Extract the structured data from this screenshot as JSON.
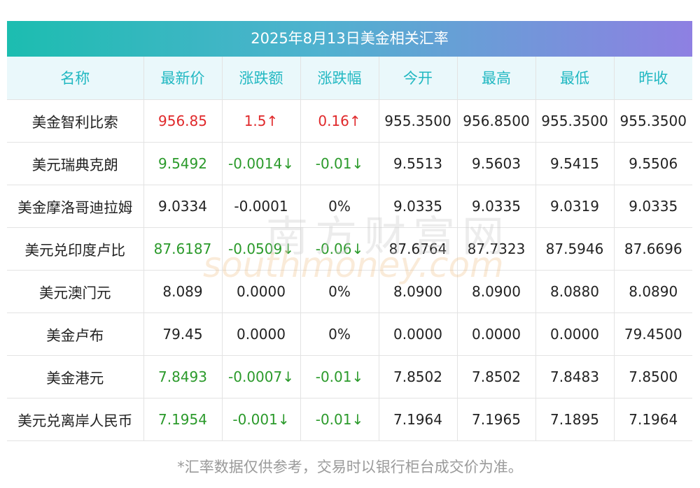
{
  "title": "2025年8月13日美金相关汇率",
  "headers": [
    "名称",
    "最新价",
    "涨跌额",
    "涨跌幅",
    "今开",
    "最高",
    "最低",
    "昨收"
  ],
  "rows": [
    {
      "name": "美金智利比索",
      "latest": "956.85",
      "change": "1.5↑",
      "pct": "0.16↑",
      "open": "955.3500",
      "high": "956.8500",
      "low": "955.3500",
      "prev": "955.3500",
      "dir": "up"
    },
    {
      "name": "美元瑞典克朗",
      "latest": "9.5492",
      "change": "-0.0014↓",
      "pct": "-0.01↓",
      "open": "9.5513",
      "high": "9.5603",
      "low": "9.5415",
      "prev": "9.5506",
      "dir": "down"
    },
    {
      "name": "美金摩洛哥迪拉姆",
      "latest": "9.0334",
      "change": "-0.0001",
      "pct": "0%",
      "open": "9.0335",
      "high": "9.0335",
      "low": "9.0319",
      "prev": "9.0335",
      "dir": "flat"
    },
    {
      "name": "美元兑印度卢比",
      "latest": "87.6187",
      "change": "-0.0509↓",
      "pct": "-0.06↓",
      "open": "87.6764",
      "high": "87.7323",
      "low": "87.5946",
      "prev": "87.6696",
      "dir": "down"
    },
    {
      "name": "美元澳门元",
      "latest": "8.089",
      "change": "0.0000",
      "pct": "0%",
      "open": "8.0900",
      "high": "8.0900",
      "low": "8.0880",
      "prev": "8.0890",
      "dir": "flat"
    },
    {
      "name": "美金卢布",
      "latest": "79.45",
      "change": "0.0000",
      "pct": "0%",
      "open": "0.0000",
      "high": "0.0000",
      "low": "0.0000",
      "prev": "79.4500",
      "dir": "flat"
    },
    {
      "name": "美金港元",
      "latest": "7.8493",
      "change": "-0.0007↓",
      "pct": "-0.01↓",
      "open": "7.8502",
      "high": "7.8502",
      "low": "7.8483",
      "prev": "7.8500",
      "dir": "down"
    },
    {
      "name": "美元兑离岸人民币",
      "latest": "7.1954",
      "change": "-0.001↓",
      "pct": "-0.01↓",
      "open": "7.1964",
      "high": "7.1965",
      "low": "7.1895",
      "prev": "7.1964",
      "dir": "down"
    }
  ],
  "watermark": {
    "cn": "南方财富网",
    "en": "southmoney.com"
  },
  "footnote": "*汇率数据仅供参考，交易时以银行柜台成交价为准。",
  "colors": {
    "up": "#e0292b",
    "down": "#2b9a2b",
    "header_text": "#22b8c2",
    "gradient_start": "#1cbdb0",
    "gradient_end": "#8e80e2"
  }
}
